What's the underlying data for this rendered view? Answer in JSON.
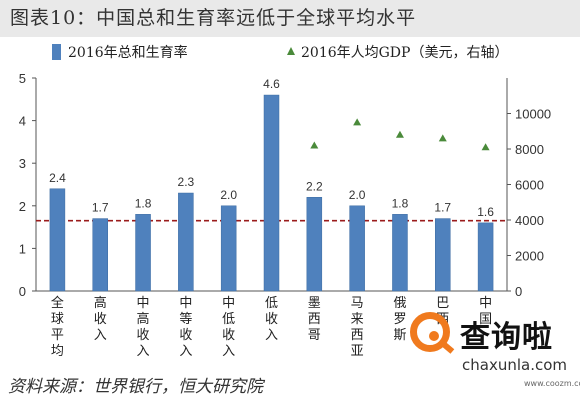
{
  "title": "图表10：中国总和生育率远低于全球平均水平",
  "source": "资料来源：世界银行，恒大研究院",
  "watermark": {
    "name": "查询啦",
    "url": "chaxunla.com",
    "url_small": "www.coozm.com"
  },
  "colors": {
    "bar": "#4f81bd",
    "marker": "#4a8a3a",
    "refline": "#9b1c1c",
    "axis": "#555555",
    "watermark": "#f07a1e"
  },
  "chart_data": {
    "type": "bar",
    "categories": [
      "全球平均",
      "高收入",
      "中高收入",
      "中等收入",
      "中低收入",
      "低收入",
      "墨西哥",
      "马来西亚",
      "俄罗斯",
      "巴西",
      "中国"
    ],
    "series": [
      {
        "name": "2016年总和生育率",
        "type": "bar",
        "axis": "left",
        "values": [
          2.4,
          1.7,
          1.8,
          2.3,
          2.0,
          4.6,
          2.2,
          2.0,
          1.8,
          1.7,
          1.6
        ]
      },
      {
        "name": "2016年人均GDP（美元，右轴）",
        "type": "marker",
        "axis": "right",
        "values": [
          null,
          null,
          null,
          null,
          null,
          null,
          8200,
          9500,
          8800,
          8600,
          8100
        ]
      }
    ],
    "y_left": {
      "ylim": [
        0,
        5
      ],
      "ticks": [
        "0",
        "1",
        "2",
        "3",
        "4",
        "5"
      ]
    },
    "y_right": {
      "ylim": [
        0,
        12000
      ],
      "ticks": [
        "0",
        "2000",
        "4000",
        "6000",
        "8000",
        "10000"
      ]
    },
    "reference_line": {
      "axis": "left",
      "value": 1.65,
      "style": "dashed"
    },
    "legend": "top",
    "grid": false
  }
}
